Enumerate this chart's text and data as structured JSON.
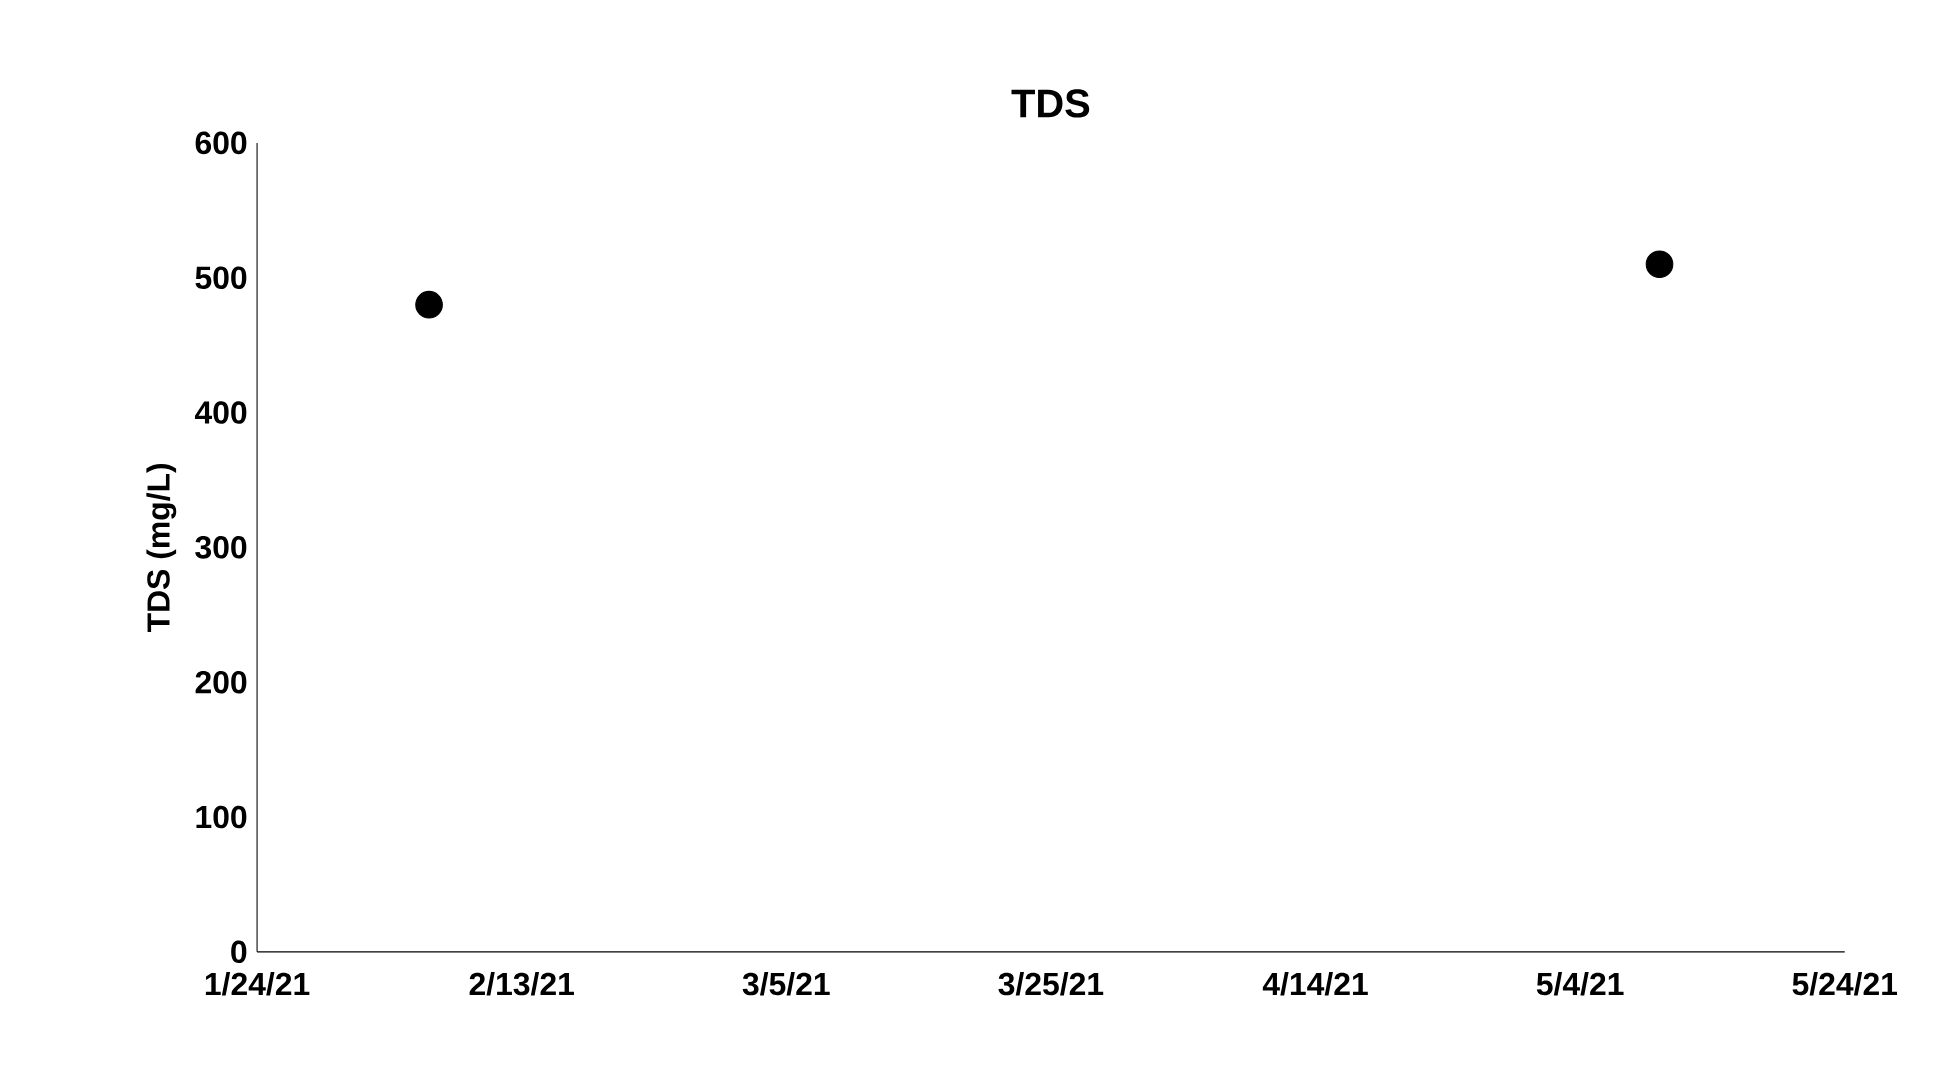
{
  "chart_data": {
    "type": "scatter",
    "title": "TDS",
    "ylabel": "TDS (mg/L)",
    "x": [
      "2021-02-06",
      "2021-05-10"
    ],
    "values": [
      480,
      510
    ],
    "color": "#000000",
    "marker": "circle",
    "xlim": [
      "2021-01-24",
      "2021-05-24"
    ],
    "xticks": [
      {
        "value": "2021-01-24",
        "label": "1/24/21"
      },
      {
        "value": "2021-02-13",
        "label": "2/13/21"
      },
      {
        "value": "2021-03-05",
        "label": "3/5/21"
      },
      {
        "value": "2021-03-25",
        "label": "3/25/21"
      },
      {
        "value": "2021-04-14",
        "label": "4/14/21"
      },
      {
        "value": "2021-05-04",
        "label": "5/4/21"
      },
      {
        "value": "2021-05-24",
        "label": "5/24/21"
      }
    ],
    "ylim": [
      0,
      600
    ],
    "yticks": [
      0,
      100,
      200,
      300,
      400,
      500,
      600
    ]
  }
}
